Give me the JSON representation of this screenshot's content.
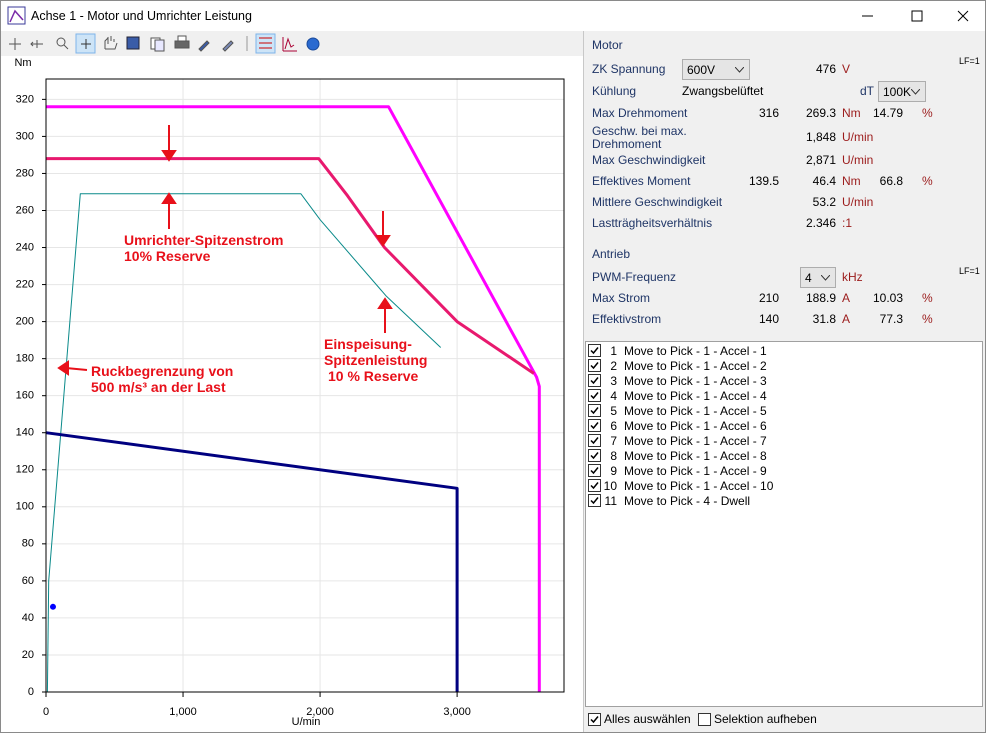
{
  "window": {
    "title": "Achse 1 - Motor und Umrichter Leistung"
  },
  "chart_data": {
    "type": "line",
    "y_label": "Nm",
    "x_label": "U/min",
    "xlim": [
      0,
      3780
    ],
    "ylim": [
      0,
      331
    ],
    "xticks": [
      0,
      {
        "value": 1000,
        "label": "1,000"
      },
      {
        "value": 2000,
        "label": "2,000"
      },
      {
        "value": 3000,
        "label": "3,000"
      }
    ],
    "yticks": [
      0,
      20,
      40,
      60,
      80,
      100,
      120,
      140,
      160,
      180,
      200,
      220,
      240,
      260,
      280,
      300,
      320
    ],
    "grid": true,
    "series": [
      {
        "color": "#ff00ff",
        "x": [
          0,
          2500,
          3580,
          3600,
          3600
        ],
        "values": [
          316,
          316,
          170,
          165,
          0
        ]
      },
      {
        "color": "#e8196e",
        "x": [
          0,
          1990,
          2200,
          2470,
          3000,
          3560
        ],
        "values": [
          288,
          288,
          268,
          240,
          200,
          172
        ]
      },
      {
        "color": "#0a8a8a",
        "x": [
          10,
          20,
          250,
          1860,
          2000,
          2480,
          2880
        ],
        "values": [
          0,
          60,
          269,
          269,
          255,
          214,
          186
        ]
      },
      {
        "color": "#000080",
        "x": [
          0,
          3000,
          3000
        ],
        "values": [
          140,
          110,
          0
        ]
      },
      {
        "color": "#0000ff",
        "marker": true,
        "x": [
          51
        ],
        "values": [
          46
        ]
      }
    ],
    "annotations": [
      {
        "lines": [
          "Umrichter-Spitzenstrom",
          "10% Reserve"
        ]
      },
      {
        "lines": [
          "Ruckbegrenzung von",
          "500 m/s³ an der Last"
        ]
      },
      {
        "lines": [
          "Einspeisung-",
          "Spitzenleistung",
          "10 % Reserve"
        ]
      }
    ]
  },
  "panel": {
    "motor": {
      "title": "Motor",
      "lf": "LF=1",
      "zk": {
        "label": "ZK Spannung",
        "select": "600V",
        "value": "476",
        "unit": "V"
      },
      "kuehlung": {
        "label": "Kühlung",
        "value": "Zwangsbelüftet",
        "dt": "dT",
        "select": "100K"
      },
      "rows": [
        {
          "label": "Max Drehmoment",
          "c1": "316",
          "c2": "269.3",
          "unit": "Nm",
          "pct": "14.79",
          "pct_unit": "%"
        },
        {
          "label": [
            "Geschw. bei max.",
            "Drehmoment"
          ],
          "c2": "1,848",
          "unit": "U/min"
        },
        {
          "label": "Max Geschwindigkeit",
          "c2": "2,871",
          "unit": "U/min"
        },
        {
          "label": "Effektives Moment",
          "c1": "139.5",
          "c2": "46.4",
          "unit": "Nm",
          "pct": "66.8",
          "pct_unit": "%"
        },
        {
          "label": "Mittlere Geschwindigkeit",
          "c2": "53.2",
          "unit": "U/min"
        },
        {
          "label": "Lastträgheitsverhältnis",
          "c2": "2.346",
          "unit": ":1"
        }
      ]
    },
    "antrieb": {
      "title": "Antrieb",
      "lf": "LF=1",
      "pwm": {
        "label": "PWM-Frequenz",
        "select": "4",
        "unit": "kHz"
      },
      "rows": [
        {
          "label": "Max Strom",
          "c1": "210",
          "c2": "188.9",
          "unit": "A",
          "pct": "10.03",
          "pct_unit": "%"
        },
        {
          "label": "Effektivstrom",
          "c1": "140",
          "c2": "31.8",
          "unit": "A",
          "pct": "77.3",
          "pct_unit": "%"
        }
      ]
    },
    "items": [
      {
        "num": "1",
        "text": "Move to Pick - 1 - Accel - 1"
      },
      {
        "num": "2",
        "text": "Move to Pick - 1 - Accel - 2"
      },
      {
        "num": "3",
        "text": "Move to Pick - 1 - Accel - 3"
      },
      {
        "num": "4",
        "text": "Move to Pick - 1 - Accel - 4"
      },
      {
        "num": "5",
        "text": "Move to Pick - 1 - Accel - 5"
      },
      {
        "num": "6",
        "text": "Move to Pick - 1 - Accel - 6"
      },
      {
        "num": "7",
        "text": "Move to Pick - 1 - Accel - 7"
      },
      {
        "num": "8",
        "text": "Move to Pick - 1 - Accel - 8"
      },
      {
        "num": "9",
        "text": "Move to Pick - 1 - Accel - 9"
      },
      {
        "num": "10",
        "text": "Move to Pick - 1 - Accel - 10"
      },
      {
        "num": "11",
        "text": "Move to Pick - 4 - Dwell"
      }
    ],
    "select_all": "Alles auswählen",
    "deselect": "Selektion aufheben"
  }
}
